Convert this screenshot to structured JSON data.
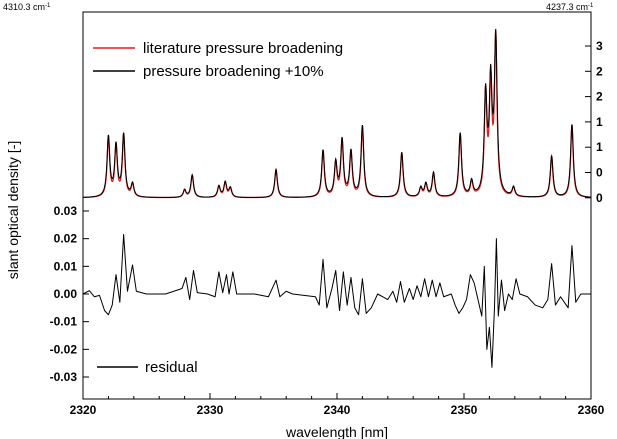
{
  "chart_data": {
    "type": "line",
    "xlabel": "wavelength [nm]",
    "ylabel": "slant optical density [-]",
    "x_range": [
      2320,
      2360
    ],
    "x_ticks": [
      "2320",
      "2330",
      "2340",
      "2350",
      "2360"
    ],
    "top_corner_labels": {
      "left": "4310.3 cm",
      "right": "4237.3 cm",
      "left_superscript": "-1",
      "right_superscript": "-1"
    },
    "upper_panel": {
      "right_axis_ticks": [
        "3",
        "2",
        "2",
        "1",
        "1",
        "0",
        "0"
      ],
      "series": [
        {
          "name": "literature pressure broadening",
          "color": "#e8191c"
        },
        {
          "name": "pressure broadening +10%",
          "color": "#000000"
        }
      ],
      "peaks_nm": [
        [
          2322.0,
          0.32
        ],
        [
          2322.6,
          0.27
        ],
        [
          2323.2,
          0.33
        ],
        [
          2323.9,
          0.07
        ],
        [
          2328.0,
          0.04
        ],
        [
          2328.6,
          0.12
        ],
        [
          2330.7,
          0.06
        ],
        [
          2331.2,
          0.08
        ],
        [
          2331.6,
          0.05
        ],
        [
          2335.2,
          0.15
        ],
        [
          2338.9,
          0.25
        ],
        [
          2339.9,
          0.18
        ],
        [
          2340.4,
          0.3
        ],
        [
          2341.1,
          0.24
        ],
        [
          2342.0,
          0.38
        ],
        [
          2345.1,
          0.24
        ],
        [
          2346.6,
          0.05
        ],
        [
          2347.0,
          0.07
        ],
        [
          2347.6,
          0.13
        ],
        [
          2349.7,
          0.34
        ],
        [
          2350.6,
          0.08
        ],
        [
          2351.7,
          0.53
        ],
        [
          2352.1,
          0.58
        ],
        [
          2352.5,
          0.83
        ],
        [
          2353.9,
          0.05
        ],
        [
          2356.9,
          0.22
        ],
        [
          2358.5,
          0.39
        ]
      ],
      "baseline": 0.02
    },
    "lower_panel": {
      "left_axis_ticks": [
        "0.03",
        "0.02",
        "0.01",
        "0.00",
        "-0.01",
        "-0.02",
        "-0.03"
      ],
      "ylim": [
        -0.032,
        0.032
      ],
      "series": [
        {
          "name": "residual",
          "color": "#000000"
        }
      ],
      "residual_points": [
        [
          2320.0,
          0.0
        ],
        [
          2320.5,
          0.0012
        ],
        [
          2320.9,
          -0.001
        ],
        [
          2321.3,
          -0.0005
        ],
        [
          2321.7,
          -0.006
        ],
        [
          2322.0,
          -0.0075
        ],
        [
          2322.3,
          -0.004
        ],
        [
          2322.6,
          0.007
        ],
        [
          2322.9,
          -0.003
        ],
        [
          2323.2,
          0.0215
        ],
        [
          2323.5,
          0.001
        ],
        [
          2323.9,
          0.0105
        ],
        [
          2324.2,
          0.001
        ],
        [
          2325.0,
          0.0
        ],
        [
          2326.5,
          0.0
        ],
        [
          2327.8,
          0.002
        ],
        [
          2328.1,
          0.006
        ],
        [
          2328.4,
          -0.002
        ],
        [
          2328.7,
          0.0085
        ],
        [
          2329.0,
          0.0005
        ],
        [
          2329.8,
          0.0
        ],
        [
          2330.4,
          -0.001
        ],
        [
          2330.7,
          0.008
        ],
        [
          2331.0,
          0.0005
        ],
        [
          2331.3,
          0.007
        ],
        [
          2331.5,
          0.0
        ],
        [
          2331.8,
          0.008
        ],
        [
          2332.1,
          0.0
        ],
        [
          2333.5,
          0.0
        ],
        [
          2334.6,
          -0.001
        ],
        [
          2335.2,
          0.005
        ],
        [
          2335.5,
          -0.001
        ],
        [
          2336.0,
          0.001
        ],
        [
          2336.5,
          0.0
        ],
        [
          2338.3,
          -0.001
        ],
        [
          2338.6,
          -0.004
        ],
        [
          2338.9,
          0.0125
        ],
        [
          2339.2,
          -0.005
        ],
        [
          2339.6,
          0.002
        ],
        [
          2339.9,
          0.0085
        ],
        [
          2340.2,
          -0.006
        ],
        [
          2340.5,
          0.008
        ],
        [
          2340.8,
          -0.004
        ],
        [
          2341.1,
          0.006
        ],
        [
          2341.4,
          -0.005
        ],
        [
          2341.7,
          -0.0075
        ],
        [
          2342.0,
          0.0055
        ],
        [
          2342.3,
          -0.007
        ],
        [
          2342.7,
          -0.005
        ],
        [
          2343.2,
          0.0
        ],
        [
          2344.0,
          -0.002
        ],
        [
          2344.4,
          0.001
        ],
        [
          2344.7,
          -0.003
        ],
        [
          2345.0,
          0.0045
        ],
        [
          2345.3,
          -0.003
        ],
        [
          2345.7,
          0.002
        ],
        [
          2346.0,
          -0.002
        ],
        [
          2346.3,
          0.003
        ],
        [
          2346.6,
          -0.001
        ],
        [
          2346.9,
          0.0055
        ],
        [
          2347.2,
          -0.001
        ],
        [
          2347.5,
          0.005
        ],
        [
          2347.8,
          -0.001
        ],
        [
          2348.1,
          0.004
        ],
        [
          2348.4,
          -0.001
        ],
        [
          2349.0,
          0.0
        ],
        [
          2349.3,
          -0.004
        ],
        [
          2349.6,
          -0.007
        ],
        [
          2349.9,
          -0.005
        ],
        [
          2350.2,
          -0.002
        ],
        [
          2350.5,
          0.007
        ],
        [
          2350.8,
          0.004
        ],
        [
          2351.1,
          -0.002
        ],
        [
          2351.4,
          -0.008
        ],
        [
          2351.6,
          0.01
        ],
        [
          2351.8,
          -0.02
        ],
        [
          2352.0,
          -0.012
        ],
        [
          2352.2,
          -0.0265
        ],
        [
          2352.4,
          -0.005
        ],
        [
          2352.55,
          0.02
        ],
        [
          2352.7,
          -0.008
        ],
        [
          2352.95,
          0.005
        ],
        [
          2353.2,
          -0.006
        ],
        [
          2353.5,
          0.0
        ],
        [
          2353.8,
          -0.002
        ],
        [
          2354.1,
          0.0055
        ],
        [
          2354.4,
          0.0
        ],
        [
          2355.0,
          -0.001
        ],
        [
          2355.6,
          -0.004
        ],
        [
          2356.2,
          -0.005
        ],
        [
          2356.6,
          -0.002
        ],
        [
          2356.9,
          0.011
        ],
        [
          2357.2,
          -0.004
        ],
        [
          2357.6,
          -0.001
        ],
        [
          2358.2,
          -0.005
        ],
        [
          2358.5,
          0.0175
        ],
        [
          2358.8,
          -0.003
        ],
        [
          2359.2,
          0.0
        ],
        [
          2360.0,
          0.0
        ]
      ]
    }
  }
}
